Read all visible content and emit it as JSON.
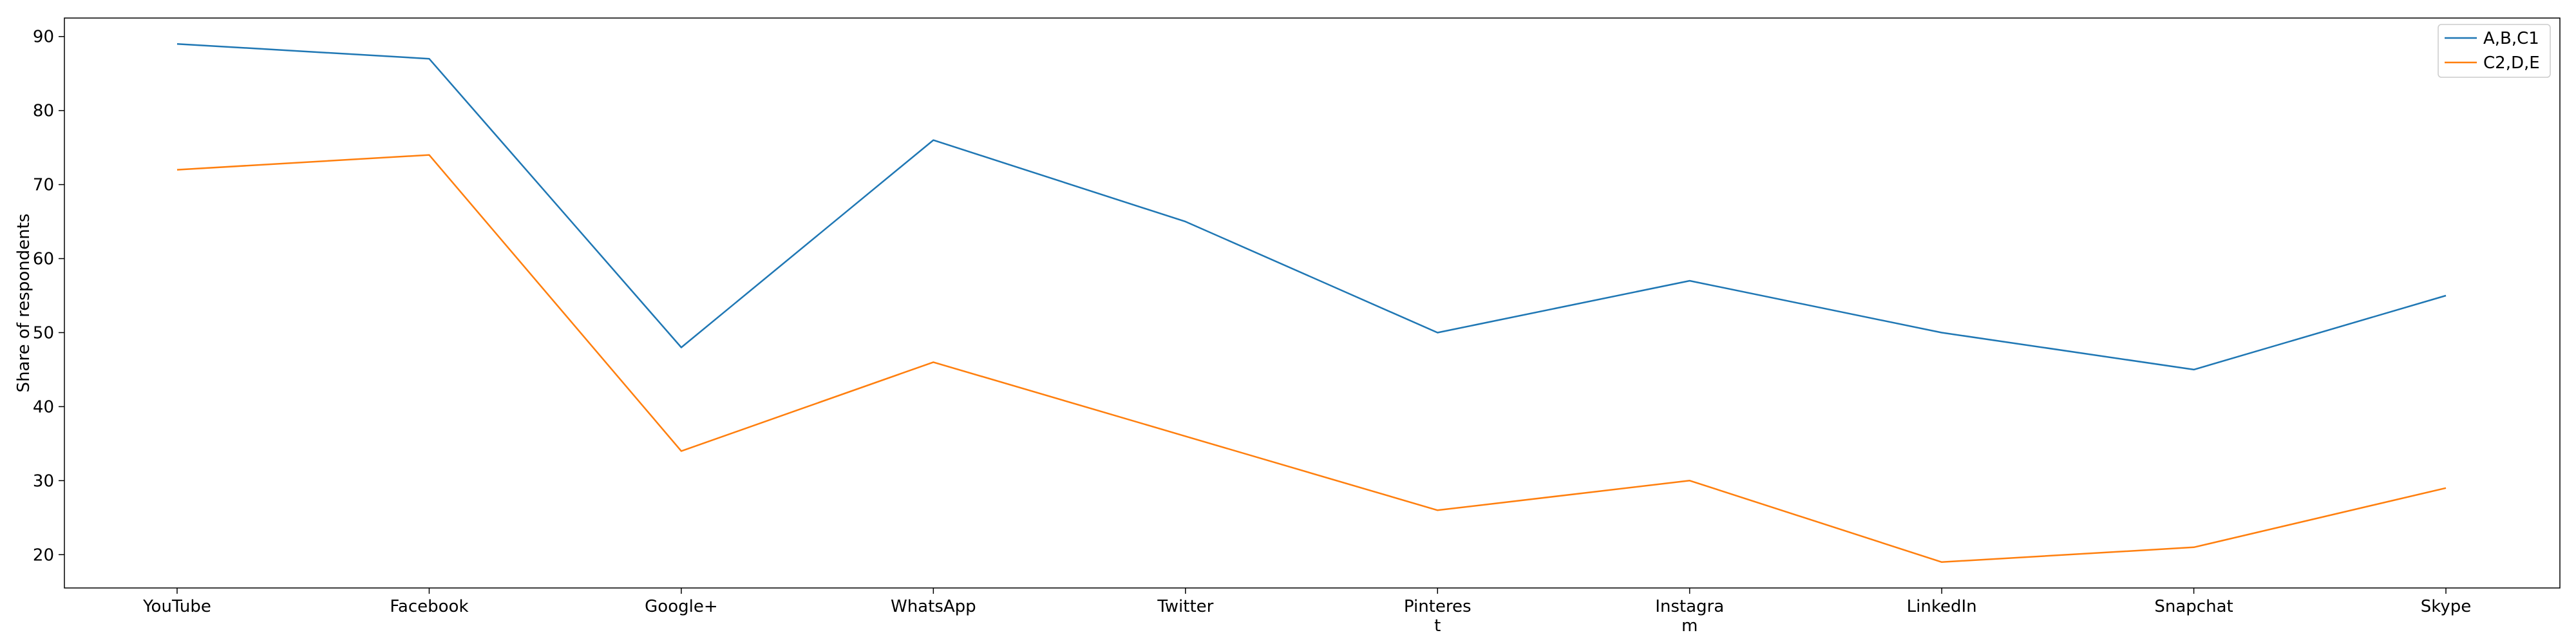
{
  "chart_data": {
    "type": "line",
    "categories": [
      "YouTube",
      "Facebook",
      "Google+",
      "WhatsApp",
      "Twitter",
      "Pinteres\nt",
      "Instagra\nm",
      "LinkedIn",
      "Snapchat",
      "Skype"
    ],
    "series": [
      {
        "name": "A,B,C1",
        "color": "#1f77b4",
        "values": [
          89,
          87,
          48,
          76,
          65,
          50,
          57,
          50,
          45,
          55
        ]
      },
      {
        "name": "C2,D,E",
        "color": "#ff7f0e",
        "values": [
          72,
          74,
          34,
          46,
          36,
          26,
          30,
          19,
          21,
          29
        ]
      }
    ],
    "title": "",
    "xlabel": "",
    "ylabel": "Share of respondents",
    "ylim": [
      15.5,
      92.5
    ],
    "yticks": [
      20,
      30,
      40,
      50,
      60,
      70,
      80,
      90
    ],
    "grid": false,
    "legend_position": "top-right"
  }
}
